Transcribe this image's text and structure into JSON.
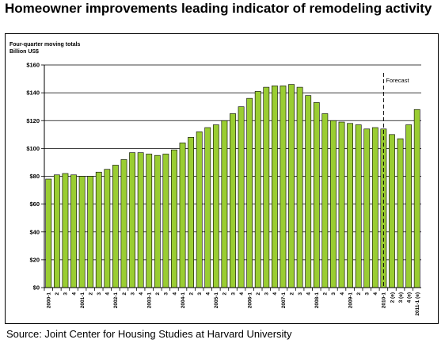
{
  "title": "Homeowner improvements leading indicator of remodeling activity",
  "source": "Source: Joint Center for Housing Studies at Harvard University",
  "chart_data": {
    "type": "bar",
    "subtitle_line1": "Four-quarter moving totals",
    "subtitle_line2": "Billion US$",
    "ylim": [
      0,
      160
    ],
    "yticks": [
      "$0",
      "$20",
      "$40",
      "$60",
      "$80",
      "$100",
      "$120",
      "$140",
      "$160"
    ],
    "grid": true,
    "forecast_label": "Forecast",
    "forecast_start_index": 41,
    "bar_color": "#9acd32",
    "categories": [
      "2000-1",
      "2",
      "3",
      "4",
      "2001-1",
      "2",
      "3",
      "4",
      "2002-1",
      "2",
      "3",
      "4",
      "2003-1",
      "2",
      "3",
      "4",
      "2004-1",
      "2",
      "3",
      "4",
      "2005-1",
      "2",
      "3",
      "4",
      "2006-1",
      "2",
      "3",
      "4",
      "2007-1",
      "2",
      "3",
      "4",
      "2008-1",
      "2",
      "3",
      "4",
      "2009-1",
      "2",
      "3",
      "4",
      "2010-1",
      "2 (e)",
      "3 (e)",
      "4 (e)",
      "2011-1 (e)"
    ],
    "values": [
      78,
      81,
      82,
      81,
      80,
      80,
      83,
      85,
      88,
      92,
      97,
      97,
      96,
      95,
      96,
      99,
      104,
      108,
      112,
      115,
      117,
      120,
      125,
      130,
      136,
      141,
      144,
      145,
      145,
      146,
      144,
      138,
      133,
      125,
      120,
      119,
      118,
      117,
      114,
      115,
      114,
      110,
      107,
      117,
      128
    ]
  }
}
